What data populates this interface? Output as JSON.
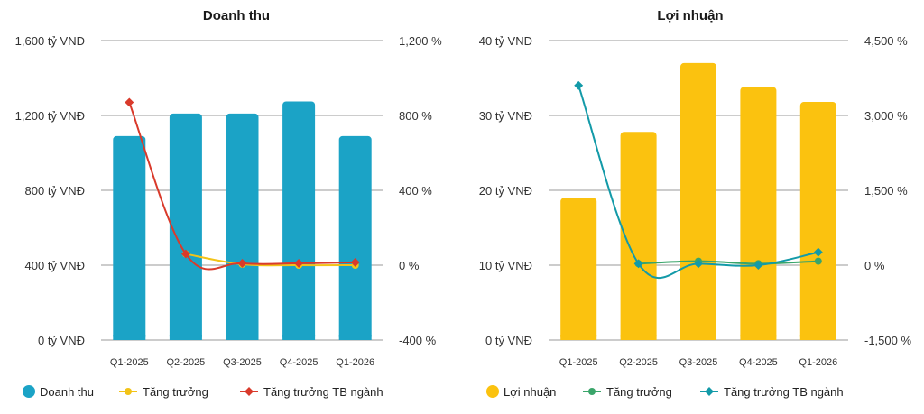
{
  "chart_data": [
    {
      "type": "bar",
      "title": "Doanh thu",
      "categories": [
        "Q1-2025",
        "Q2-2025",
        "Q3-2025",
        "Q4-2025",
        "Q1-2026"
      ],
      "y_ticks": [
        "1,600 tỷ VNĐ",
        "1,200 tỷ VNĐ",
        "800 tỷ VNĐ",
        "400 tỷ VNĐ",
        "0 tỷ VNĐ"
      ],
      "y2_ticks": [
        "1,200 %",
        "800 %",
        "400 %",
        "0 %",
        "-400 %"
      ],
      "ylim": [
        0,
        1600
      ],
      "y2lim": [
        -400,
        1200
      ],
      "bar_color": "#1ba3c6",
      "series": [
        {
          "name": "Doanh thu",
          "kind": "bar",
          "axis": "left",
          "color": "#1ba3c6",
          "values": [
            1090,
            1210,
            1210,
            1275,
            1090
          ]
        },
        {
          "name": "Tăng trưởng",
          "kind": "line",
          "axis": "right",
          "color": "#f2c318",
          "values": [
            null,
            60,
            5,
            0,
            0
          ]
        },
        {
          "name": "Tăng trưởng TB ngành",
          "kind": "line",
          "axis": "right",
          "color": "#d93a2b",
          "values": [
            870,
            60,
            10,
            10,
            15
          ]
        }
      ],
      "grid": true,
      "legend": "bottom"
    },
    {
      "type": "bar",
      "title": "Lợi nhuận",
      "categories": [
        "Q1-2025",
        "Q2-2025",
        "Q3-2025",
        "Q4-2025",
        "Q1-2026"
      ],
      "y_ticks": [
        "40 tỷ VNĐ",
        "30 tỷ VNĐ",
        "20 tỷ VNĐ",
        "10 tỷ VNĐ",
        "0 tỷ VNĐ"
      ],
      "y2_ticks": [
        "4,500 %",
        "3,000 %",
        "1,500 %",
        "0 %",
        "-1,500 %"
      ],
      "ylim": [
        0,
        40
      ],
      "y2lim": [
        -1500,
        4500
      ],
      "bar_color": "#fbc20f",
      "series": [
        {
          "name": "Lợi nhuận",
          "kind": "bar",
          "axis": "left",
          "color": "#fbc20f",
          "values": [
            19,
            27.8,
            37,
            33.8,
            31.8
          ]
        },
        {
          "name": "Tăng trưởng",
          "kind": "line",
          "axis": "right",
          "color": "#3aa56a",
          "values": [
            null,
            30,
            80,
            30,
            80
          ]
        },
        {
          "name": "Tăng trưởng TB ngành",
          "kind": "line",
          "axis": "right",
          "color": "#139aa8",
          "values": [
            3600,
            30,
            30,
            0,
            260
          ]
        }
      ],
      "grid": true,
      "legend": "bottom"
    }
  ]
}
